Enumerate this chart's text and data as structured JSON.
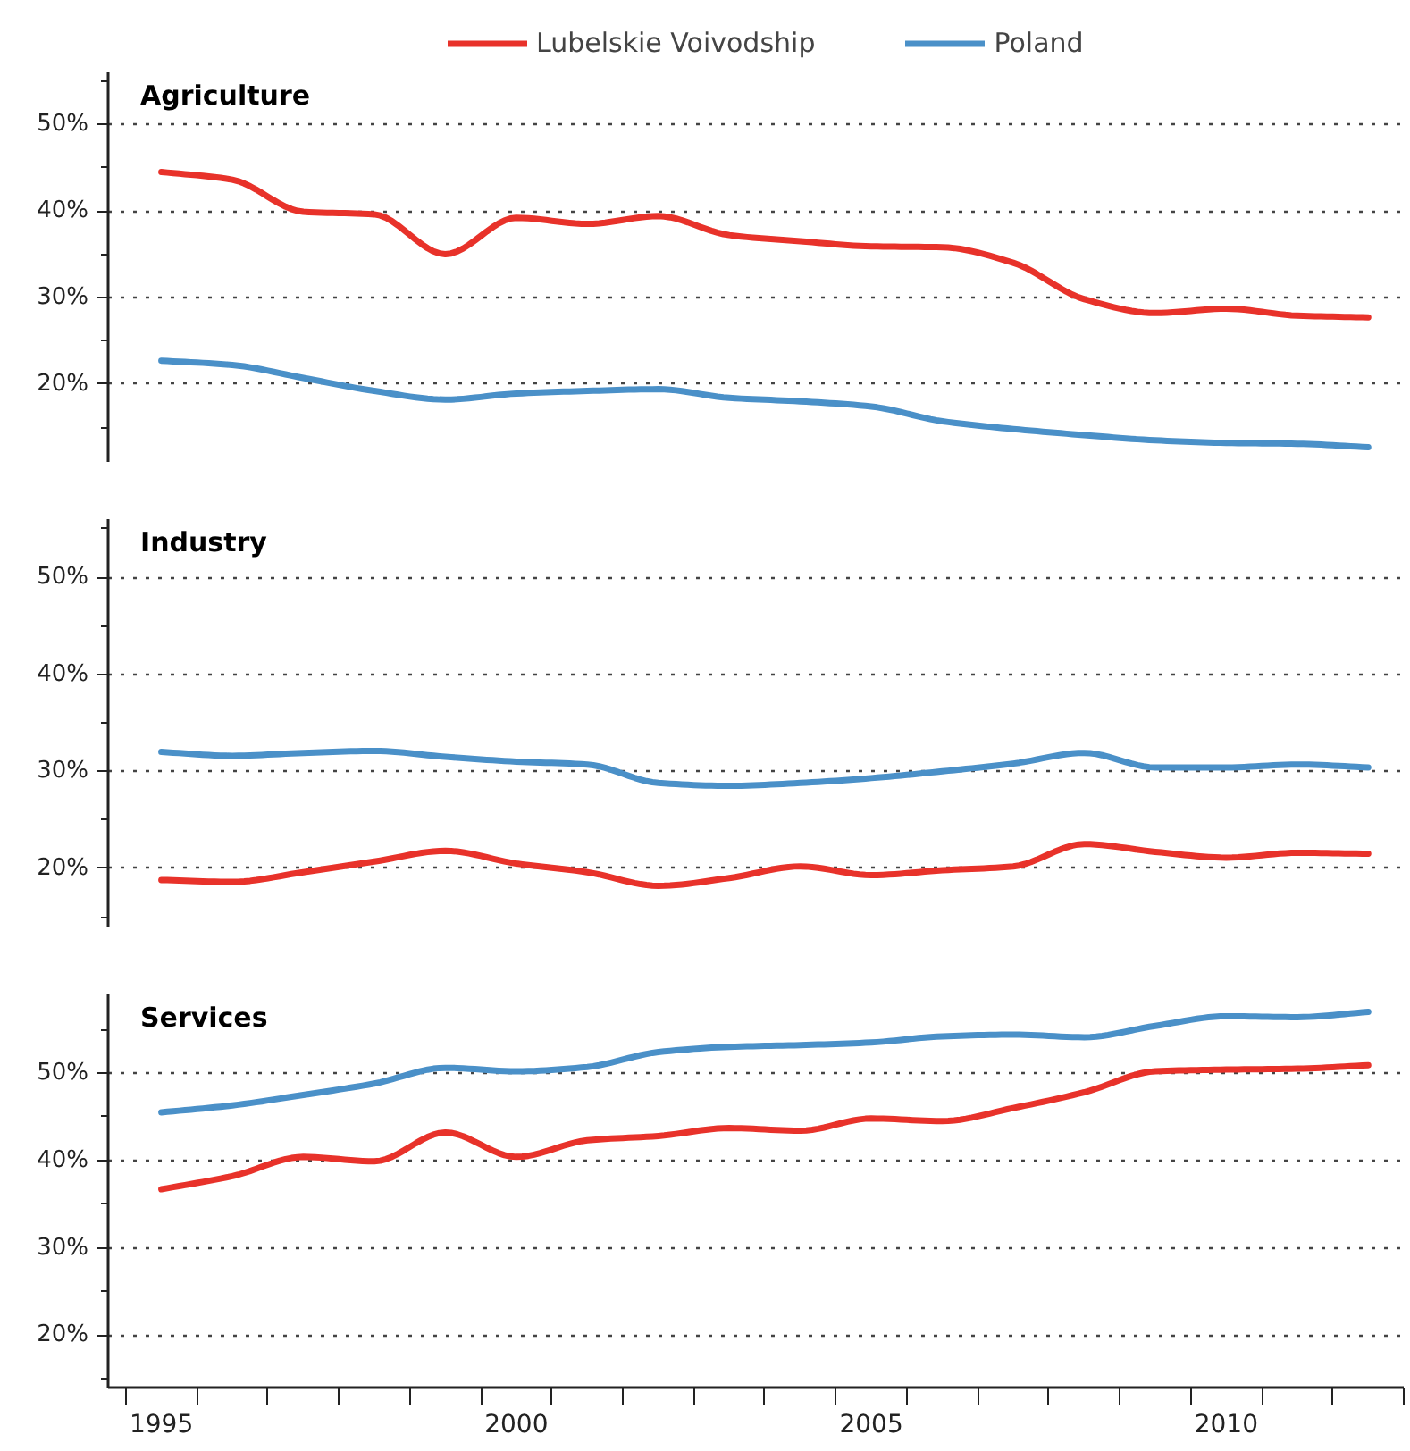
{
  "chart_data": [
    {
      "type": "line",
      "title": "Agriculture",
      "x": [
        1995,
        1996,
        1997,
        1998,
        1999,
        2000,
        2001,
        2002,
        2003,
        2004,
        2005,
        2006,
        2007,
        2008,
        2009,
        2010,
        2011,
        2012
      ],
      "xlim": [
        1994.25,
        2012.5
      ],
      "ylim": [
        11,
        56
      ],
      "yticks": [
        {
          "value": 15,
          "label": null
        },
        {
          "value": 20,
          "label": "20%"
        },
        {
          "value": 25,
          "label": null
        },
        {
          "value": 30,
          "label": "30%"
        },
        {
          "value": 35,
          "label": null
        },
        {
          "value": 40,
          "label": "40%"
        },
        {
          "value": 45,
          "label": null
        },
        {
          "value": 50,
          "label": "50%"
        },
        {
          "value": 55,
          "label": null
        }
      ],
      "grid": "y",
      "legend": "top",
      "tick_labels": "y",
      "line_style": "solid",
      "marker": "none",
      "series": [
        {
          "name": "Lubelskie Voivodship",
          "color": "#e8322a",
          "values": [
            44.5,
            43.6,
            39.9,
            39.6,
            35.0,
            39.2,
            38.5,
            39.4,
            37.2,
            36.5,
            35.9,
            35.8,
            34.0,
            29.8,
            28.2,
            28.7,
            27.9,
            27.7
          ]
        },
        {
          "name": "Poland",
          "color": "#4a90c8",
          "values": [
            22.7,
            22.2,
            20.7,
            19.2,
            18.2,
            18.9,
            19.2,
            19.4,
            18.4,
            18.0,
            17.4,
            15.7,
            14.8,
            14.1,
            13.5,
            13.2,
            13.1,
            12.7
          ]
        }
      ]
    },
    {
      "type": "line",
      "title": "Industry",
      "x": [
        1995,
        1996,
        1997,
        1998,
        1999,
        2000,
        2001,
        2002,
        2003,
        2004,
        2005,
        2006,
        2007,
        2008,
        2009,
        2010,
        2011,
        2012
      ],
      "xlim": [
        1994.25,
        2012.5
      ],
      "ylim": [
        14,
        56
      ],
      "yticks": [
        {
          "value": 15,
          "label": null
        },
        {
          "value": 20,
          "label": "20%"
        },
        {
          "value": 25,
          "label": null
        },
        {
          "value": 30,
          "label": "30%"
        },
        {
          "value": 35,
          "label": null
        },
        {
          "value": 40,
          "label": "40%"
        },
        {
          "value": 45,
          "label": null
        },
        {
          "value": 50,
          "label": "50%"
        },
        {
          "value": 55,
          "label": null
        }
      ],
      "grid": "y",
      "tick_labels": "y",
      "line_style": "solid",
      "marker": "none",
      "series": [
        {
          "color": "#e8322a",
          "values": [
            18.8,
            18.6,
            19.6,
            20.7,
            21.8,
            20.5,
            19.6,
            18.2,
            19.0,
            20.2,
            19.3,
            19.8,
            20.2,
            22.5,
            21.7,
            21.1,
            21.6,
            21.5
          ]
        },
        {
          "color": "#4a90c8",
          "values": [
            32.0,
            31.6,
            31.9,
            32.1,
            31.5,
            31.0,
            30.7,
            28.8,
            28.5,
            28.8,
            29.3,
            30.0,
            30.8,
            31.9,
            30.4,
            30.4,
            30.7,
            30.4
          ]
        }
      ]
    },
    {
      "type": "line",
      "title": "Services",
      "x": [
        1995,
        1996,
        1997,
        1998,
        1999,
        2000,
        2001,
        2002,
        2003,
        2004,
        2005,
        2006,
        2007,
        2008,
        2009,
        2010,
        2011,
        2012
      ],
      "xlim": [
        1994.25,
        2012.5
      ],
      "xticks": [
        {
          "value": 1994.5,
          "label": null
        },
        {
          "value": 1995,
          "label": "1995"
        },
        {
          "value": 1995.5,
          "label": null
        },
        {
          "value": 1996.5,
          "label": null
        },
        {
          "value": 1997.5,
          "label": null
        },
        {
          "value": 1998.5,
          "label": null
        },
        {
          "value": 1999.5,
          "label": null
        },
        {
          "value": 2000,
          "label": "2000"
        },
        {
          "value": 2000.5,
          "label": null
        },
        {
          "value": 2001.5,
          "label": null
        },
        {
          "value": 2002.5,
          "label": null
        },
        {
          "value": 2003.5,
          "label": null
        },
        {
          "value": 2004.5,
          "label": null
        },
        {
          "value": 2005,
          "label": "2005"
        },
        {
          "value": 2005.5,
          "label": null
        },
        {
          "value": 2006.5,
          "label": null
        },
        {
          "value": 2007.5,
          "label": null
        },
        {
          "value": 2008.5,
          "label": null
        },
        {
          "value": 2009.5,
          "label": null
        },
        {
          "value": 2010,
          "label": "2010"
        },
        {
          "value": 2010.5,
          "label": null
        },
        {
          "value": 2011.5,
          "label": null
        },
        {
          "value": 2012.5,
          "label": null
        }
      ],
      "ylim": [
        14,
        59
      ],
      "yticks": [
        {
          "value": 15,
          "label": null
        },
        {
          "value": 20,
          "label": "20%"
        },
        {
          "value": 25,
          "label": null
        },
        {
          "value": 30,
          "label": "30%"
        },
        {
          "value": 35,
          "label": null
        },
        {
          "value": 40,
          "label": "40%"
        },
        {
          "value": 45,
          "label": null
        },
        {
          "value": 50,
          "label": "50%"
        },
        {
          "value": 55,
          "label": null
        }
      ],
      "grid": "y",
      "line_style": "solid",
      "marker": "none",
      "series": [
        {
          "color": "#e8322a",
          "values": [
            36.7,
            38.2,
            40.4,
            39.9,
            43.2,
            40.4,
            42.3,
            42.8,
            43.7,
            43.4,
            44.8,
            44.5,
            46.0,
            47.8,
            50.2,
            50.4,
            50.5,
            50.9
          ]
        },
        {
          "color": "#4a90c8",
          "values": [
            45.5,
            46.3,
            47.5,
            48.8,
            50.6,
            50.2,
            50.7,
            52.4,
            53.0,
            53.2,
            53.5,
            54.2,
            54.4,
            54.1,
            55.4,
            56.5,
            56.4,
            57.0
          ]
        }
      ]
    }
  ]
}
